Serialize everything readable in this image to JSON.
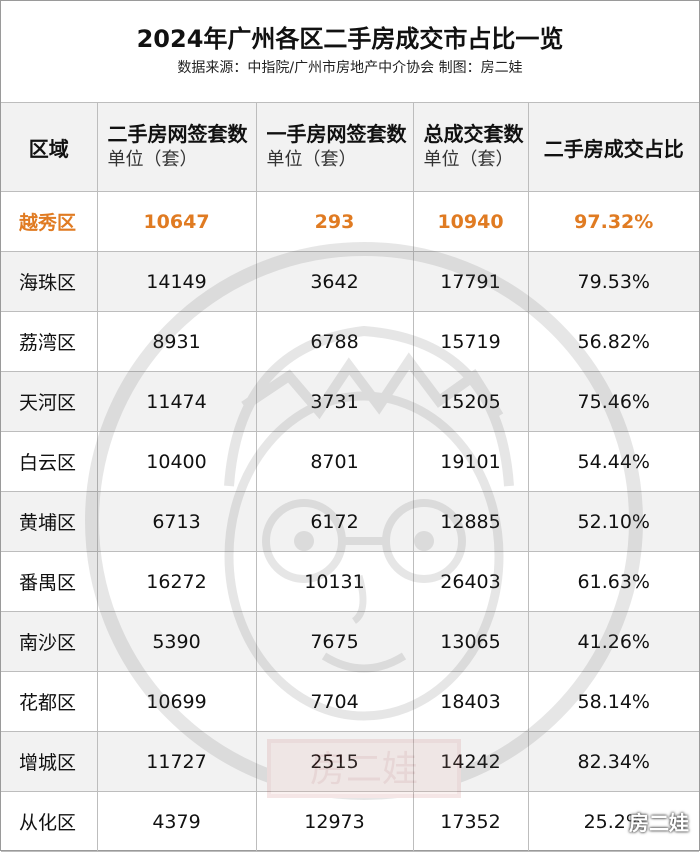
{
  "title": "2024年广州各区二手房成交市占比一览",
  "source": "数据来源：中指院/广州市房地产中介协会 制图：房二娃",
  "headers": {
    "region": "区域",
    "resale": {
      "main": "二手房网签套数",
      "unit": "单位（套）"
    },
    "new": {
      "main": "一手房网签套数",
      "unit": "单位（套）"
    },
    "total": {
      "main": "总成交套数",
      "unit": "单位（套）"
    },
    "share": "二手房成交占比"
  },
  "rows": [
    {
      "region": "越秀区",
      "resale": "10647",
      "new": "293",
      "total": "10940",
      "share": "97.32%"
    },
    {
      "region": "海珠区",
      "resale": "14149",
      "new": "3642",
      "total": "17791",
      "share": "79.53%"
    },
    {
      "region": "荔湾区",
      "resale": "8931",
      "new": "6788",
      "total": "15719",
      "share": "56.82%"
    },
    {
      "region": "天河区",
      "resale": "11474",
      "new": "3731",
      "total": "15205",
      "share": "75.46%"
    },
    {
      "region": "白云区",
      "resale": "10400",
      "new": "8701",
      "total": "19101",
      "share": "54.44%"
    },
    {
      "region": "黄埔区",
      "resale": "6713",
      "new": "6172",
      "total": "12885",
      "share": "52.10%"
    },
    {
      "region": "番禺区",
      "resale": "16272",
      "new": "10131",
      "total": "26403",
      "share": "61.63%"
    },
    {
      "region": "南沙区",
      "resale": "5390",
      "new": "7675",
      "total": "13065",
      "share": "41.26%"
    },
    {
      "region": "花都区",
      "resale": "10699",
      "new": "7704",
      "total": "18403",
      "share": "58.14%"
    },
    {
      "region": "增城区",
      "resale": "11727",
      "new": "2515",
      "total": "14242",
      "share": "82.34%"
    },
    {
      "region": "从化区",
      "resale": "4379",
      "new": "12973",
      "total": "17352",
      "share": "25.2%"
    }
  ],
  "highlight_color": "#e07b22",
  "watermark": {
    "icon": "cartoon-face-watermark-icon",
    "stamp_text": "房二娃"
  },
  "corner_mark": "房二娃"
}
